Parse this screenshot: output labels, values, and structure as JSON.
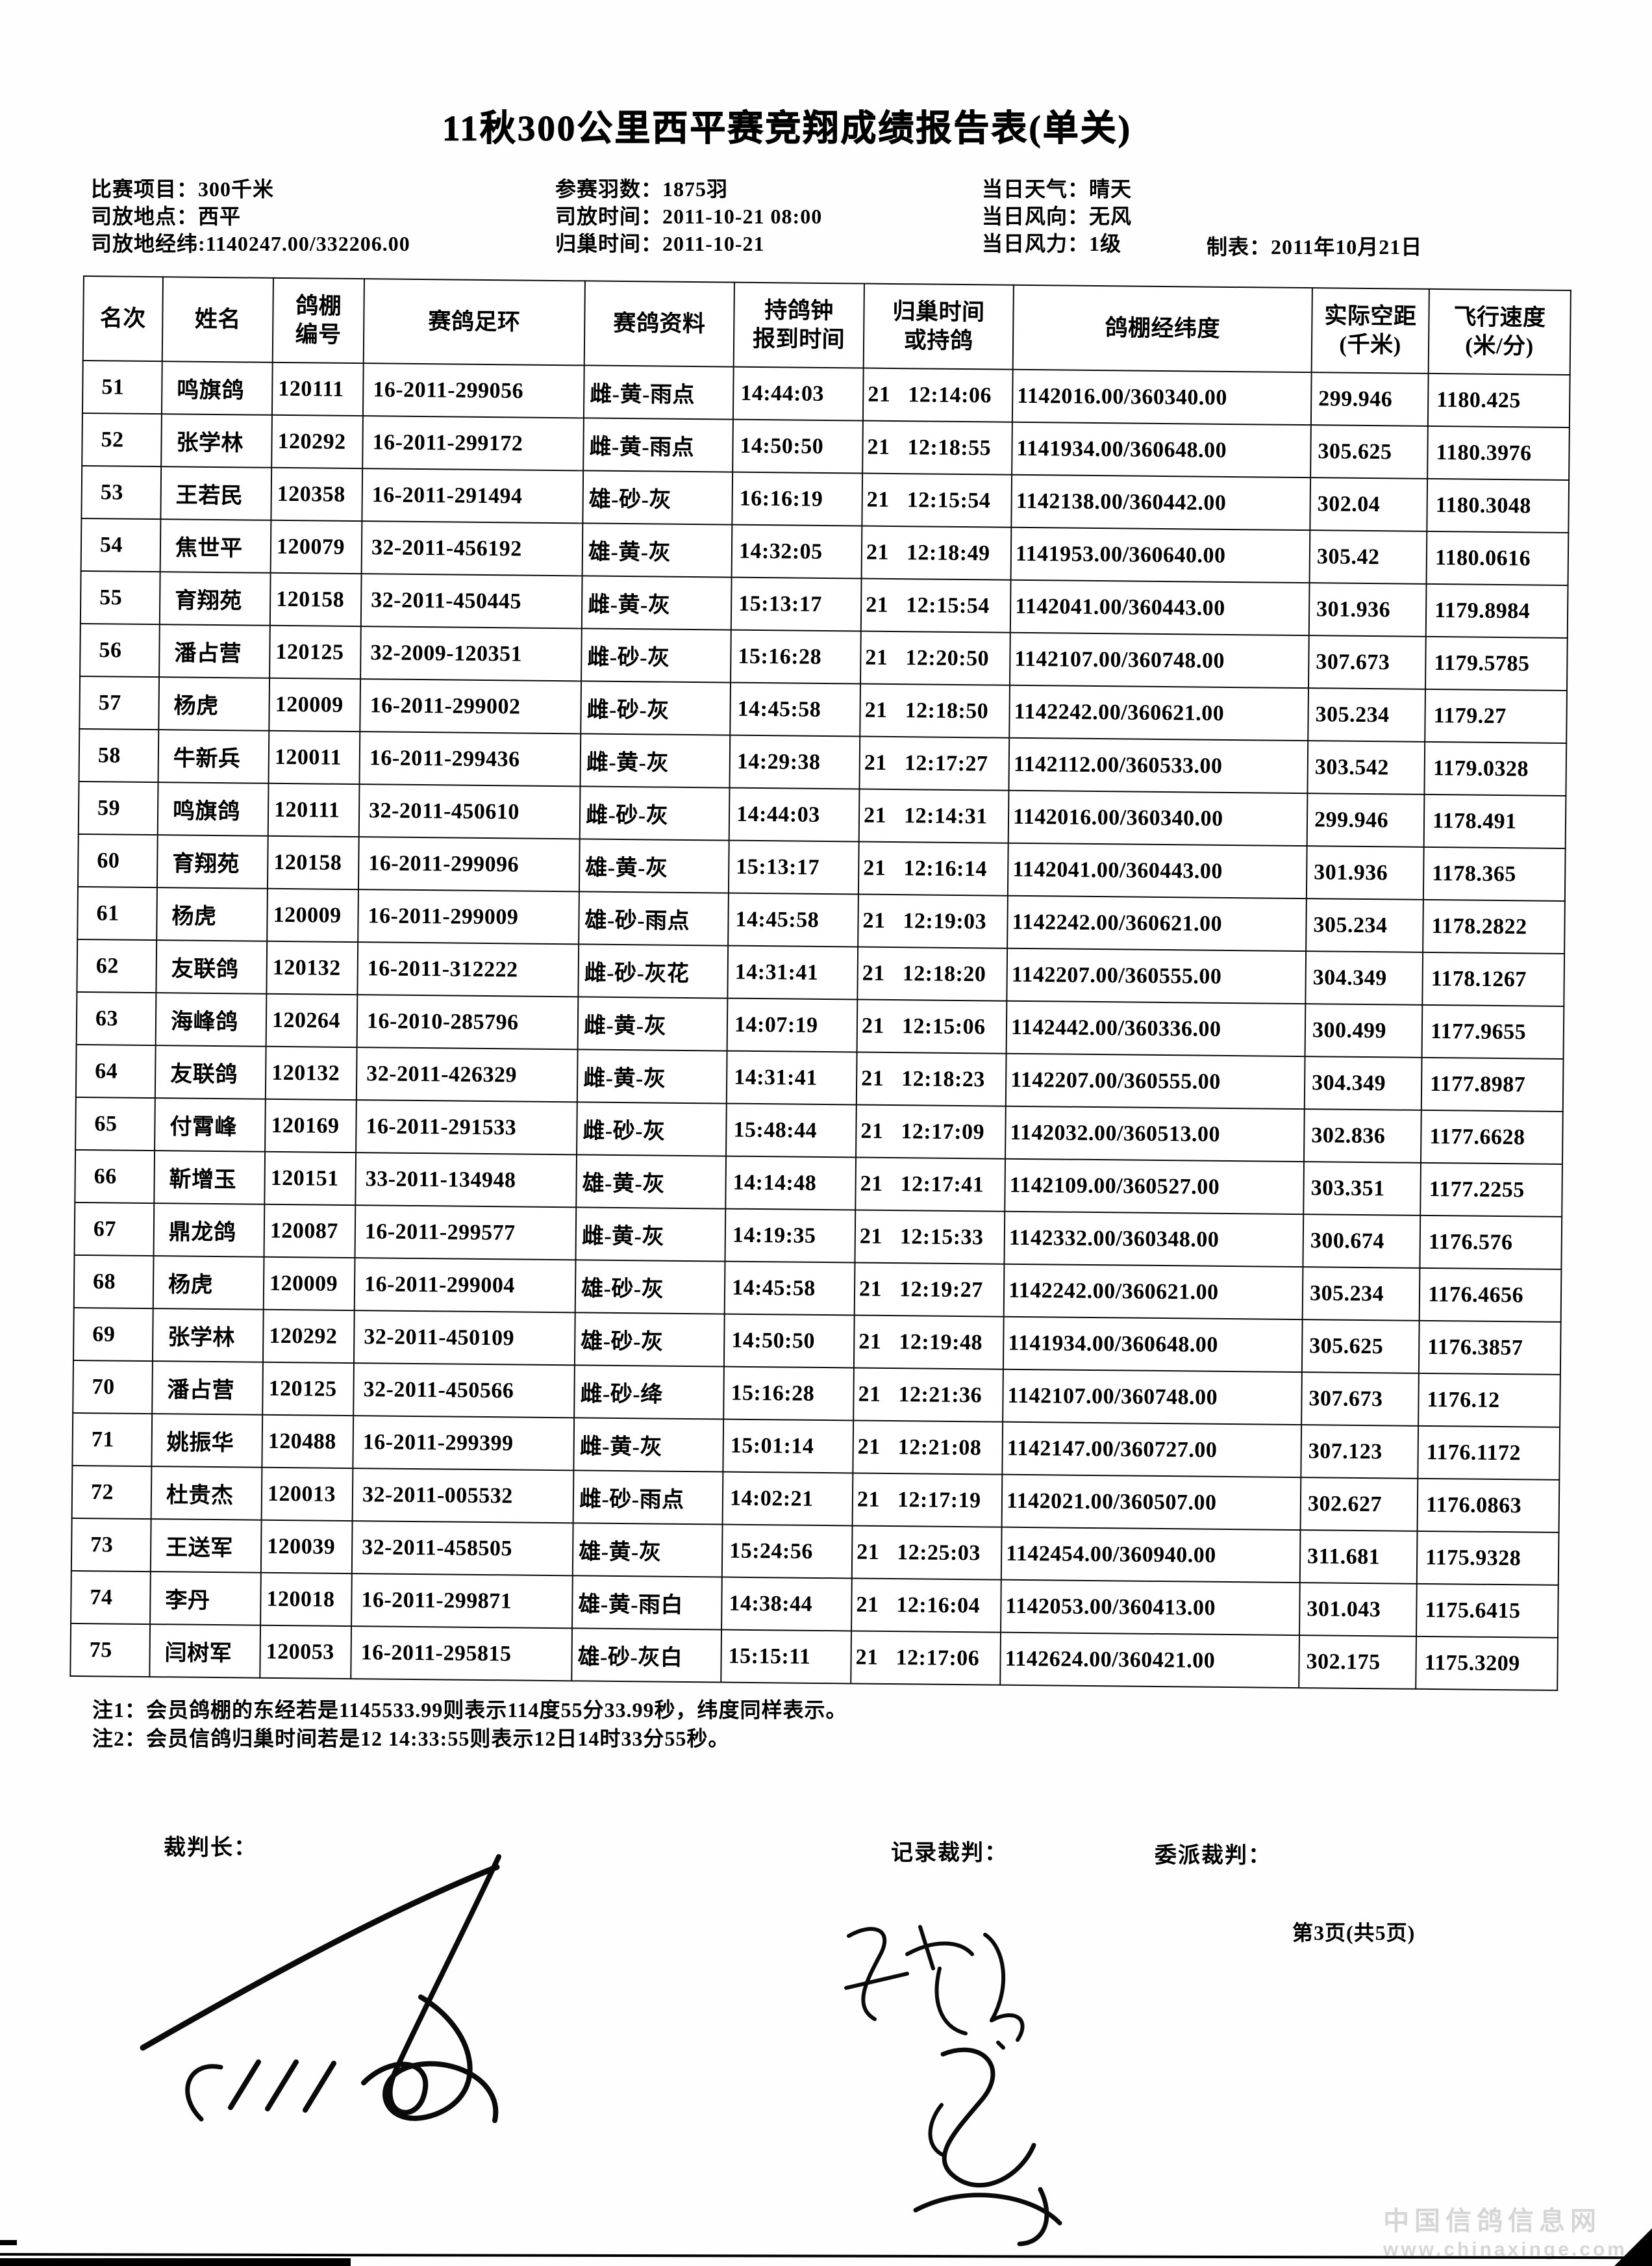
{
  "page": {
    "title": "11秋300公里西平赛竞翔成绩报告表(单关)",
    "page_indicator": "第3页(共5页)",
    "watermark": {
      "line1": "中国信鸽信息网",
      "line2": "www.chinaxinge.com"
    }
  },
  "meta": {
    "left": [
      "比赛项目：300千米",
      "司放地点：西平",
      "司放地经纬:1140247.00/332206.00"
    ],
    "middle": [
      "参赛羽数：1875羽",
      "司放时间：2011-10-21 08:00",
      "归巢时间：2011-10-21"
    ],
    "right": [
      "当日天气：晴天",
      "当日风向：无风",
      "当日风力：1级"
    ],
    "made": "制表：2011年10月21日"
  },
  "table": {
    "headers": [
      "名次",
      "姓名",
      "鸽棚\n编号",
      "赛鸽足环",
      "赛鸽资料",
      "持鸽钟\n报到时间",
      "归巢时间\n或持鸽",
      "鸽棚经纬度",
      "实际空距\n(千米)",
      "飞行速度\n(米/分)"
    ],
    "rows": [
      [
        "51",
        "鸣旗鸽",
        "120111",
        "16-2011-299056",
        "雌-黄-雨点",
        "14:44:03",
        "21 12:14:06",
        "1142016.00/360340.00",
        "299.946",
        "1180.425"
      ],
      [
        "52",
        "张学林",
        "120292",
        "16-2011-299172",
        "雌-黄-雨点",
        "14:50:50",
        "21 12:18:55",
        "1141934.00/360648.00",
        "305.625",
        "1180.3976"
      ],
      [
        "53",
        "王若民",
        "120358",
        "16-2011-291494",
        "雄-砂-灰",
        "16:16:19",
        "21 12:15:54",
        "1142138.00/360442.00",
        "302.04",
        "1180.3048"
      ],
      [
        "54",
        "焦世平",
        "120079",
        "32-2011-456192",
        "雄-黄-灰",
        "14:32:05",
        "21 12:18:49",
        "1141953.00/360640.00",
        "305.42",
        "1180.0616"
      ],
      [
        "55",
        "育翔苑",
        "120158",
        "32-2011-450445",
        "雌-黄-灰",
        "15:13:17",
        "21 12:15:54",
        "1142041.00/360443.00",
        "301.936",
        "1179.8984"
      ],
      [
        "56",
        "潘占营",
        "120125",
        "32-2009-120351",
        "雌-砂-灰",
        "15:16:28",
        "21 12:20:50",
        "1142107.00/360748.00",
        "307.673",
        "1179.5785"
      ],
      [
        "57",
        "杨虎",
        "120009",
        "16-2011-299002",
        "雌-砂-灰",
        "14:45:58",
        "21 12:18:50",
        "1142242.00/360621.00",
        "305.234",
        "1179.27"
      ],
      [
        "58",
        "牛新兵",
        "120011",
        "16-2011-299436",
        "雌-黄-灰",
        "14:29:38",
        "21 12:17:27",
        "1142112.00/360533.00",
        "303.542",
        "1179.0328"
      ],
      [
        "59",
        "鸣旗鸽",
        "120111",
        "32-2011-450610",
        "雌-砂-灰",
        "14:44:03",
        "21 12:14:31",
        "1142016.00/360340.00",
        "299.946",
        "1178.491"
      ],
      [
        "60",
        "育翔苑",
        "120158",
        "16-2011-299096",
        "雄-黄-灰",
        "15:13:17",
        "21 12:16:14",
        "1142041.00/360443.00",
        "301.936",
        "1178.365"
      ],
      [
        "61",
        "杨虎",
        "120009",
        "16-2011-299009",
        "雄-砂-雨点",
        "14:45:58",
        "21 12:19:03",
        "1142242.00/360621.00",
        "305.234",
        "1178.2822"
      ],
      [
        "62",
        "友联鸽",
        "120132",
        "16-2011-312222",
        "雌-砂-灰花",
        "14:31:41",
        "21 12:18:20",
        "1142207.00/360555.00",
        "304.349",
        "1178.1267"
      ],
      [
        "63",
        "海峰鸽",
        "120264",
        "16-2010-285796",
        "雌-黄-灰",
        "14:07:19",
        "21 12:15:06",
        "1142442.00/360336.00",
        "300.499",
        "1177.9655"
      ],
      [
        "64",
        "友联鸽",
        "120132",
        "32-2011-426329",
        "雌-黄-灰",
        "14:31:41",
        "21 12:18:23",
        "1142207.00/360555.00",
        "304.349",
        "1177.8987"
      ],
      [
        "65",
        "付霄峰",
        "120169",
        "16-2011-291533",
        "雌-砂-灰",
        "15:48:44",
        "21 12:17:09",
        "1142032.00/360513.00",
        "302.836",
        "1177.6628"
      ],
      [
        "66",
        "靳增玉",
        "120151",
        "33-2011-134948",
        "雄-黄-灰",
        "14:14:48",
        "21 12:17:41",
        "1142109.00/360527.00",
        "303.351",
        "1177.2255"
      ],
      [
        "67",
        "鼎龙鸽",
        "120087",
        "16-2011-299577",
        "雌-黄-灰",
        "14:19:35",
        "21 12:15:33",
        "1142332.00/360348.00",
        "300.674",
        "1176.576"
      ],
      [
        "68",
        "杨虎",
        "120009",
        "16-2011-299004",
        "雄-砂-灰",
        "14:45:58",
        "21 12:19:27",
        "1142242.00/360621.00",
        "305.234",
        "1176.4656"
      ],
      [
        "69",
        "张学林",
        "120292",
        "32-2011-450109",
        "雄-砂-灰",
        "14:50:50",
        "21 12:19:48",
        "1141934.00/360648.00",
        "305.625",
        "1176.3857"
      ],
      [
        "70",
        "潘占营",
        "120125",
        "32-2011-450566",
        "雌-砂-绛",
        "15:16:28",
        "21 12:21:36",
        "1142107.00/360748.00",
        "307.673",
        "1176.12"
      ],
      [
        "71",
        "姚振华",
        "120488",
        "16-2011-299399",
        "雌-黄-灰",
        "15:01:14",
        "21 12:21:08",
        "1142147.00/360727.00",
        "307.123",
        "1176.1172"
      ],
      [
        "72",
        "杜贵杰",
        "120013",
        "32-2011-005532",
        "雌-砂-雨点",
        "14:02:21",
        "21 12:17:19",
        "1142021.00/360507.00",
        "302.627",
        "1176.0863"
      ],
      [
        "73",
        "王送军",
        "120039",
        "32-2011-458505",
        "雄-黄-灰",
        "15:24:56",
        "21 12:25:03",
        "1142454.00/360940.00",
        "311.681",
        "1175.9328"
      ],
      [
        "74",
        "李丹",
        "120018",
        "16-2011-299871",
        "雄-黄-雨白",
        "14:38:44",
        "21 12:16:04",
        "1142053.00/360413.00",
        "301.043",
        "1175.6415"
      ],
      [
        "75",
        "闫树军",
        "120053",
        "16-2011-295815",
        "雄-砂-灰白",
        "15:15:11",
        "21 12:17:06",
        "1142624.00/360421.00",
        "302.175",
        "1175.3209"
      ]
    ]
  },
  "notes": [
    "注1：会员鸽棚的东经若是1145533.99则表示114度55分33.99秒，纬度同样表示。",
    "注2：会员信鸽归巢时间若是12 14:33:55则表示12日14时33分55秒。"
  ],
  "footer": {
    "judge_chief": "裁判长：",
    "judge_record": "记录裁判：",
    "judge_assigned": "委派裁判："
  }
}
